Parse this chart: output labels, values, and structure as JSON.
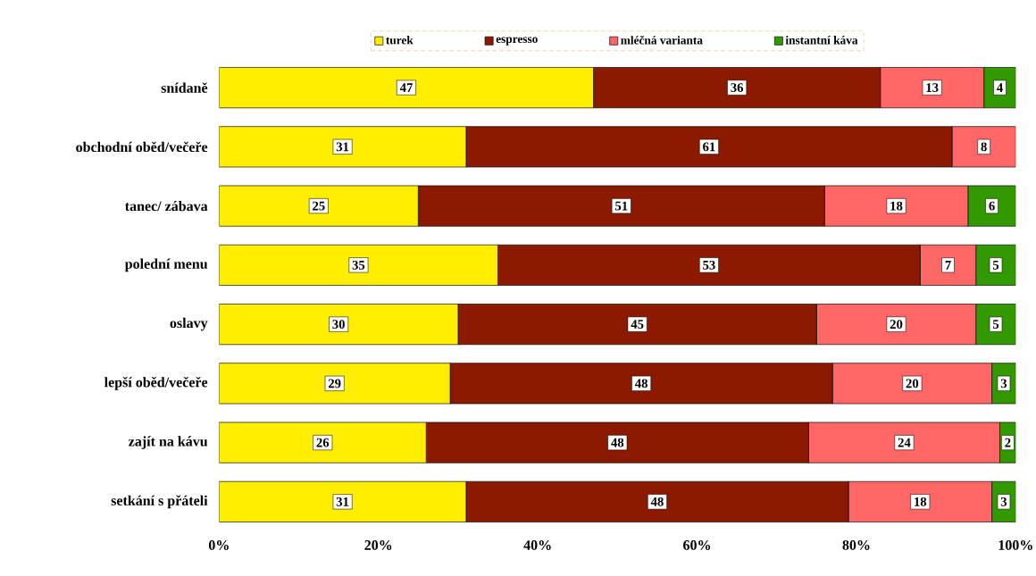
{
  "chart_data": {
    "type": "bar",
    "orientation": "horizontal",
    "stacked": true,
    "data_labels": true,
    "legend": "top",
    "grid": false,
    "categories": [
      "snídaně",
      "obchodní oběd/večeře",
      "tanec/ zábava",
      "polední menu",
      "oslavy",
      "lepší oběd/večeře",
      "zajít na kávu",
      "setkání s přáteli"
    ],
    "series": [
      {
        "name": "turek",
        "color": "#ffee00",
        "values": [
          47,
          31,
          25,
          35,
          30,
          29,
          26,
          31
        ]
      },
      {
        "name": "espresso",
        "color": "#8b1a00",
        "values": [
          36,
          61,
          51,
          53,
          45,
          48,
          48,
          48
        ]
      },
      {
        "name": "mléčná varianta",
        "color": "#ff6666",
        "values": [
          13,
          8,
          18,
          7,
          20,
          20,
          24,
          18
        ]
      },
      {
        "name": "instantní káva",
        "color": "#339900",
        "values": [
          4,
          null,
          6,
          5,
          5,
          3,
          2,
          3
        ]
      }
    ],
    "xlim": [
      0,
      100
    ],
    "xticks": [
      {
        "value": 0,
        "label": "0%"
      },
      {
        "value": 20,
        "label": "20%"
      },
      {
        "value": 40,
        "label": "40%"
      },
      {
        "value": 60,
        "label": "60%"
      },
      {
        "value": 80,
        "label": "80%"
      },
      {
        "value": 100,
        "label": "100%"
      }
    ]
  }
}
